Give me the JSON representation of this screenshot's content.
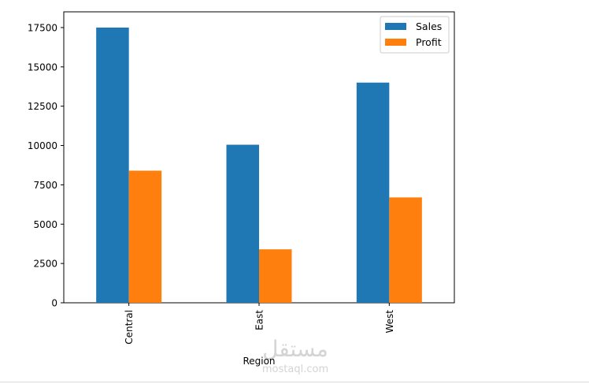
{
  "chart_data": {
    "type": "bar",
    "categories": [
      "Central",
      "East",
      "West"
    ],
    "series": [
      {
        "name": "Sales",
        "color": "#1f77b4",
        "values": [
          17500,
          10050,
          14000
        ]
      },
      {
        "name": "Profit",
        "color": "#ff7f0e",
        "values": [
          8400,
          3400,
          6700
        ]
      }
    ],
    "xlabel": "Region",
    "ylabel": "",
    "ylim": [
      0,
      18500
    ],
    "yticks": [
      0,
      2500,
      5000,
      7500,
      10000,
      12500,
      15000,
      17500
    ],
    "legend_position": "top-right",
    "grid": false,
    "xtick_rotation": "vertical"
  },
  "watermark": {
    "arabic": "مستقل",
    "latin": "mostaql.com"
  }
}
